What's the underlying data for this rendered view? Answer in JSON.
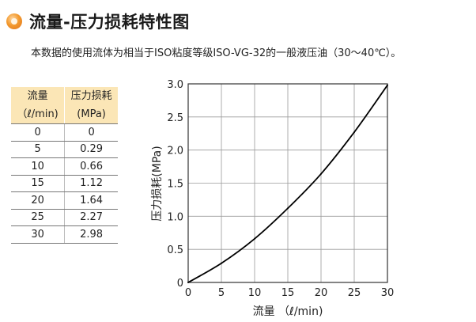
{
  "title": "流量-压力损耗特性图",
  "description": "本数据的使用流体为相当于ISO粘度等级ISO-VG-32的一般液压油（30～40℃）。",
  "table": {
    "headers": [
      {
        "line1": "流量",
        "line2": "（ℓ/min)"
      },
      {
        "line1": "压力损耗",
        "line2": "(MPa)"
      }
    ],
    "rows": [
      {
        "flow": "0",
        "loss": "0"
      },
      {
        "flow": "5",
        "loss": "0.29"
      },
      {
        "flow": "10",
        "loss": "0.66"
      },
      {
        "flow": "15",
        "loss": "1.12"
      },
      {
        "flow": "20",
        "loss": "1.64"
      },
      {
        "flow": "25",
        "loss": "2.27"
      },
      {
        "flow": "30",
        "loss": "2.98"
      }
    ]
  },
  "chart_data": {
    "type": "line",
    "title": "",
    "xlabel": "流量 （ℓ/min)",
    "ylabel": "压力损耗(MPa)",
    "xlim": [
      0,
      30
    ],
    "ylim": [
      0,
      3.0
    ],
    "x_ticks": [
      0,
      5,
      10,
      15,
      20,
      25,
      30
    ],
    "y_ticks": [
      0,
      0.5,
      1.0,
      1.5,
      2.0,
      2.5,
      3.0
    ],
    "y_tick_labels": [
      "0",
      "0.5",
      "1.0",
      "1.5",
      "2.0",
      "2.5",
      "3.0"
    ],
    "grid": true,
    "series": [
      {
        "x": [
          0,
          5,
          10,
          15,
          20,
          25,
          30
        ],
        "y": [
          0,
          0.29,
          0.66,
          1.12,
          1.64,
          2.27,
          2.98
        ],
        "color": "#000000"
      }
    ]
  }
}
